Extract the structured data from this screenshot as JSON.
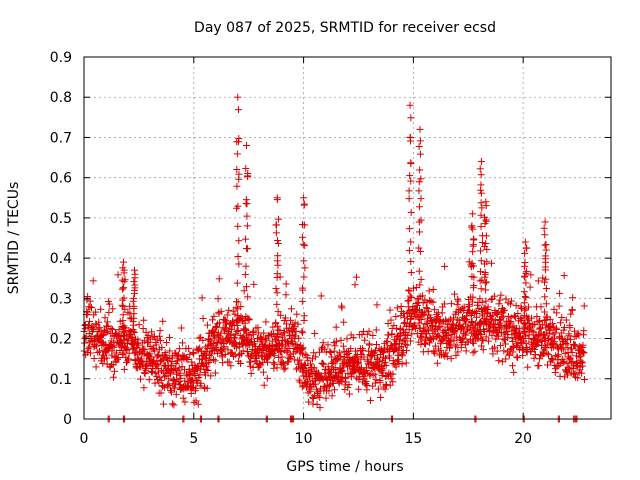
{
  "chart_data": {
    "type": "scatter",
    "title": "Day 087 of 2025, SRMTID for receiver ecsd",
    "xlabel": "GPS time / hours",
    "ylabel": "SRMTID / TECUs",
    "xlim": [
      0,
      24
    ],
    "ylim": [
      0,
      0.9
    ],
    "xticks": [
      0,
      5,
      10,
      15,
      20
    ],
    "xtick_labels": [
      "0",
      "5",
      "10",
      "15",
      "20"
    ],
    "yticks": [
      0,
      0.1,
      0.2,
      0.3,
      0.4,
      0.5,
      0.6,
      0.7,
      0.8,
      0.9
    ],
    "ytick_labels": [
      "0",
      "0.1",
      "0.2",
      "0.3",
      "0.4",
      "0.5",
      "0.6",
      "0.7",
      "0.8",
      "0.9"
    ],
    "grid": true,
    "marker": "plus",
    "color": "#dd0000",
    "series": [
      {
        "name": "SRMTID",
        "approx_profile_hours": [
          0,
          0.5,
          1,
          1.5,
          2,
          2.5,
          3,
          3.5,
          4,
          4.5,
          5,
          5.5,
          6,
          6.5,
          7,
          7.5,
          8,
          8.5,
          9,
          9.5,
          10,
          10.5,
          11,
          11.5,
          12,
          12.5,
          13,
          13.5,
          14,
          14.5,
          15,
          15.5,
          16,
          16.5,
          17,
          17.5,
          18,
          18.5,
          19,
          19.5,
          20,
          20.5,
          21,
          21.5,
          22,
          22.5
        ],
        "approx_profile_median": [
          0.24,
          0.22,
          0.18,
          0.17,
          0.2,
          0.16,
          0.15,
          0.13,
          0.13,
          0.1,
          0.11,
          0.15,
          0.2,
          0.21,
          0.22,
          0.19,
          0.17,
          0.18,
          0.19,
          0.2,
          0.12,
          0.09,
          0.11,
          0.12,
          0.14,
          0.13,
          0.14,
          0.13,
          0.16,
          0.22,
          0.26,
          0.24,
          0.22,
          0.22,
          0.23,
          0.22,
          0.24,
          0.23,
          0.22,
          0.2,
          0.21,
          0.19,
          0.21,
          0.18,
          0.18,
          0.15
        ],
        "peaks": [
          {
            "x": 1.8,
            "y": 0.39
          },
          {
            "x": 2.3,
            "y": 0.37
          },
          {
            "x": 7.0,
            "y": 0.8
          },
          {
            "x": 7.4,
            "y": 0.68
          },
          {
            "x": 8.8,
            "y": 0.55
          },
          {
            "x": 10.0,
            "y": 0.55
          },
          {
            "x": 14.85,
            "y": 0.78
          },
          {
            "x": 15.3,
            "y": 0.72
          },
          {
            "x": 17.7,
            "y": 0.51
          },
          {
            "x": 18.1,
            "y": 0.64
          },
          {
            "x": 18.3,
            "y": 0.54
          },
          {
            "x": 20.1,
            "y": 0.44
          },
          {
            "x": 21.0,
            "y": 0.49
          }
        ],
        "baseline_marks_x": [
          1.1,
          1.8,
          4.5,
          5.3,
          6.1,
          8.3,
          9.4,
          9.5,
          14.0,
          17.8,
          20.0,
          21.6,
          22.3,
          22.4
        ]
      }
    ]
  }
}
